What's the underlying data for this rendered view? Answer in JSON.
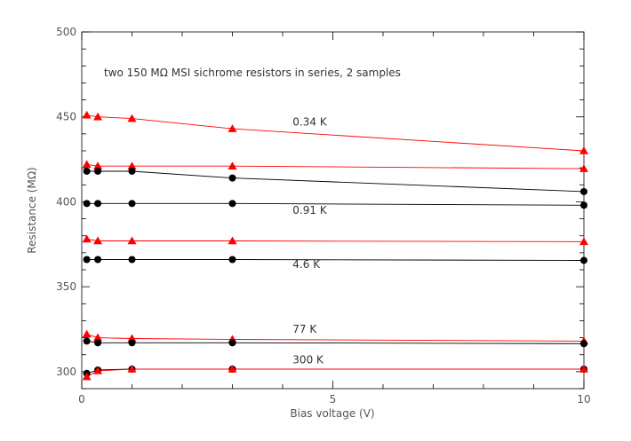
{
  "chart_data": {
    "type": "scatter",
    "title": "",
    "xlabel": "Bias voltage (V)",
    "ylabel": "Resistance (MΩ)",
    "xlim": [
      0,
      10
    ],
    "ylim": [
      290,
      500
    ],
    "x_major_ticks": [
      0,
      5,
      10
    ],
    "y_major_ticks": [
      300,
      350,
      400,
      450,
      500
    ],
    "x_minor_step": 1,
    "y_minor_step": 10,
    "grid": false,
    "annotation": "two 150 MΩ MSI sichrome resistors in series, 2 samples",
    "colors": {
      "red": "#ff0000",
      "black": "#000000"
    },
    "curve_labels": [
      {
        "text": "0.34 K",
        "x": 4.2,
        "y": 445
      },
      {
        "text": "0.91 K",
        "x": 4.2,
        "y": 393
      },
      {
        "text": "4.6 K",
        "x": 4.2,
        "y": 361
      },
      {
        "text": "77 K",
        "x": 4.2,
        "y": 323
      },
      {
        "text": "300 K",
        "x": 4.2,
        "y": 305
      }
    ],
    "series": [
      {
        "marker": "triangle",
        "color": "#ff0000",
        "x": [
          0.1,
          0.32,
          1,
          3,
          10
        ],
        "y": [
          451,
          450,
          449,
          443,
          430
        ]
      },
      {
        "marker": "triangle",
        "color": "#ff0000",
        "x": [
          0.1,
          0.32,
          1,
          3,
          10
        ],
        "y": [
          422,
          421,
          421,
          421,
          419.5
        ]
      },
      {
        "marker": "circle",
        "color": "#000000",
        "x": [
          0.1,
          0.32,
          1,
          3,
          10
        ],
        "y": [
          418,
          418,
          418,
          414,
          406
        ]
      },
      {
        "marker": "circle",
        "color": "#000000",
        "x": [
          0.1,
          0.32,
          1,
          3,
          10
        ],
        "y": [
          399,
          399,
          399,
          399,
          398
        ]
      },
      {
        "marker": "triangle",
        "color": "#ff0000",
        "x": [
          0.1,
          0.32,
          1,
          3,
          10
        ],
        "y": [
          378,
          377,
          377,
          377,
          376.5
        ]
      },
      {
        "marker": "circle",
        "color": "#000000",
        "x": [
          0.1,
          0.32,
          1,
          3,
          10
        ],
        "y": [
          366,
          366,
          366,
          366,
          365.5
        ]
      },
      {
        "marker": "triangle",
        "color": "#ff0000",
        "x": [
          0.1,
          0.32,
          1,
          3,
          10
        ],
        "y": [
          322,
          320,
          319.5,
          319,
          318
        ]
      },
      {
        "marker": "circle",
        "color": "#000000",
        "x": [
          0.1,
          0.32,
          1,
          3,
          10
        ],
        "y": [
          318,
          317,
          317,
          317,
          316.5
        ]
      },
      {
        "marker": "circle",
        "color": "#000000",
        "x": [
          0.1,
          0.32,
          1,
          3,
          10
        ],
        "y": [
          299,
          301,
          301.5,
          301.5,
          301.5
        ]
      },
      {
        "marker": "triangle",
        "color": "#ff0000",
        "x": [
          0.1,
          0.32,
          1,
          3,
          10
        ],
        "y": [
          297,
          300.5,
          301.5,
          301.5,
          301.5
        ]
      }
    ]
  }
}
